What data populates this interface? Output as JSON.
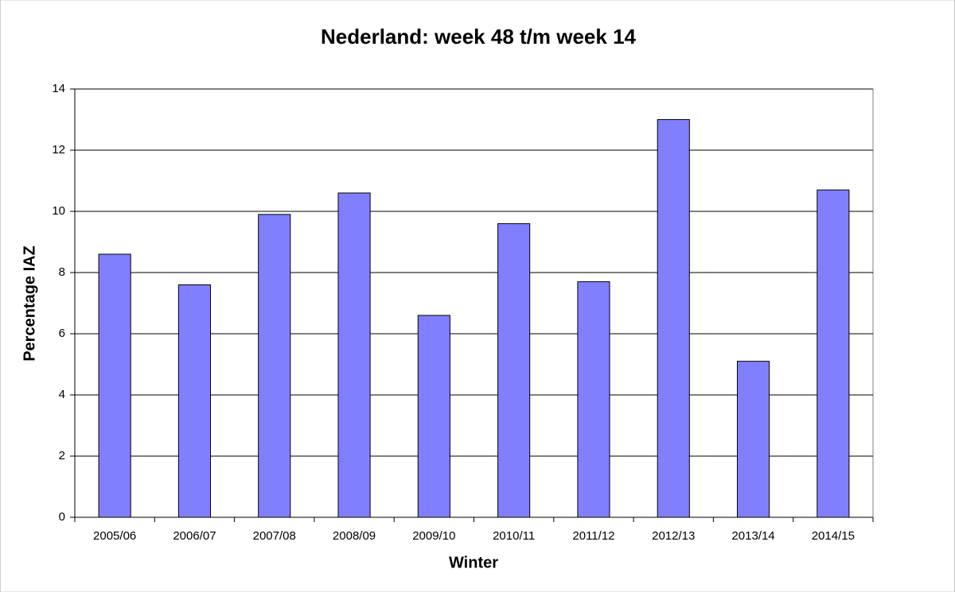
{
  "chart_data": {
    "type": "bar",
    "title": "Nederland: week 48 t/m week 14",
    "x_label": "Winter",
    "y_label": "Percentage IAZ",
    "categories": [
      "2005/06",
      "2006/07",
      "2007/08",
      "2008/09",
      "2009/10",
      "2010/11",
      "2011/12",
      "2012/13",
      "2013/14",
      "2014/15"
    ],
    "values": [
      8.6,
      7.6,
      9.9,
      10.6,
      6.6,
      9.6,
      7.7,
      13.0,
      5.1,
      10.7
    ],
    "color": "#8080ff",
    "ylim": [
      0,
      14
    ],
    "yticks": [
      0,
      2,
      4,
      6,
      8,
      10,
      12,
      14
    ],
    "grid": true
  }
}
